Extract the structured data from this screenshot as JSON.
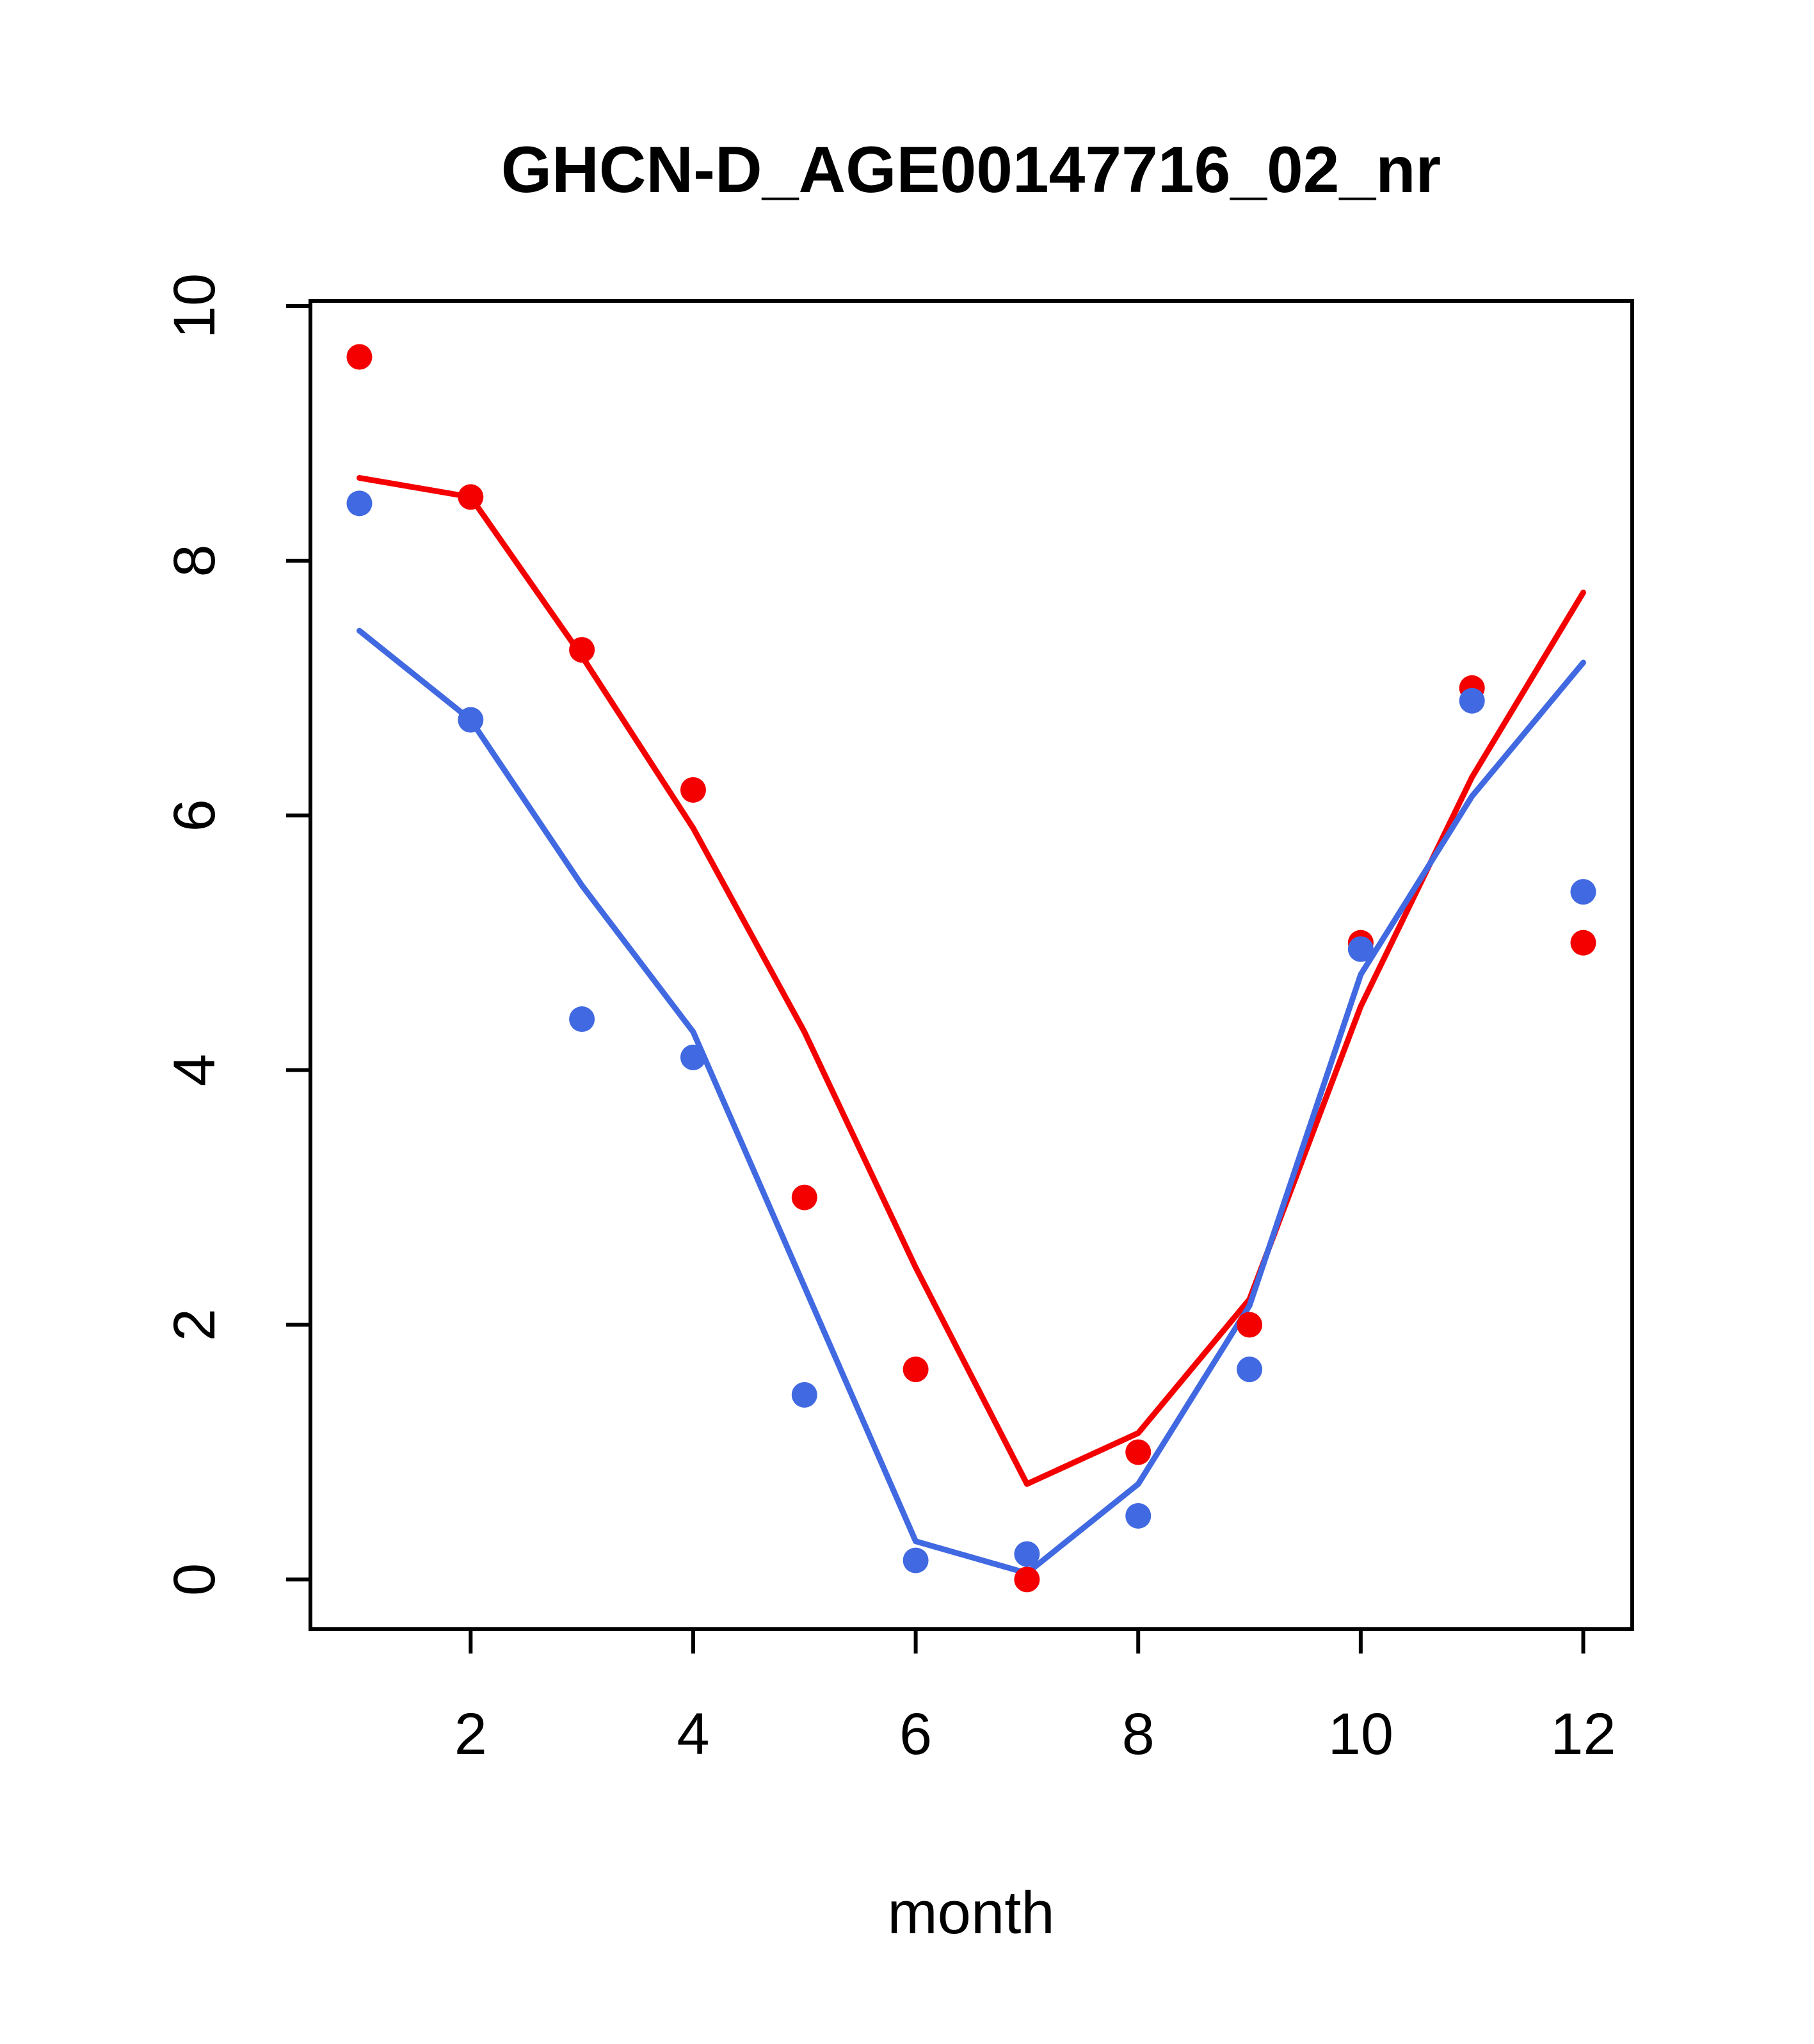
{
  "page": {
    "background": "#ffffff"
  },
  "chart_data": {
    "type": "line",
    "title": "GHCN-D_AGE00147716_02_nr",
    "xlabel": "month",
    "ylabel": "",
    "xlim": [
      0.56,
      12.44
    ],
    "ylim": [
      -0.39,
      10.04
    ],
    "x_ticks": [
      2,
      4,
      6,
      8,
      10,
      12
    ],
    "y_ticks": [
      0,
      2,
      4,
      6,
      8,
      10
    ],
    "x": [
      1,
      2,
      3,
      4,
      5,
      6,
      7,
      8,
      9,
      10,
      11,
      12
    ],
    "grid": false,
    "legend": "none",
    "series": [
      {
        "name": "red-scatter",
        "style": "points",
        "color": "#f40000",
        "values": [
          9.6,
          8.5,
          7.3,
          6.2,
          3.0,
          1.65,
          0.0,
          1.0,
          2.0,
          5.0,
          7.0,
          5.0
        ]
      },
      {
        "name": "red-fit",
        "style": "line",
        "color": "#f40000",
        "values": [
          8.65,
          8.5,
          7.25,
          5.9,
          4.3,
          2.45,
          0.75,
          1.15,
          2.2,
          4.5,
          6.3,
          7.75
        ]
      },
      {
        "name": "blue-scatter",
        "style": "points",
        "color": "#4169e1",
        "values": [
          8.45,
          6.75,
          4.4,
          4.1,
          1.45,
          0.15,
          0.2,
          0.5,
          1.65,
          4.95,
          6.9,
          5.4
        ]
      },
      {
        "name": "blue-fit",
        "style": "line",
        "color": "#4169e1",
        "values": [
          7.45,
          6.75,
          5.45,
          4.3,
          2.3,
          0.3,
          0.05,
          0.75,
          2.15,
          4.75,
          6.15,
          7.2
        ]
      }
    ],
    "axis_color": "#000000"
  }
}
